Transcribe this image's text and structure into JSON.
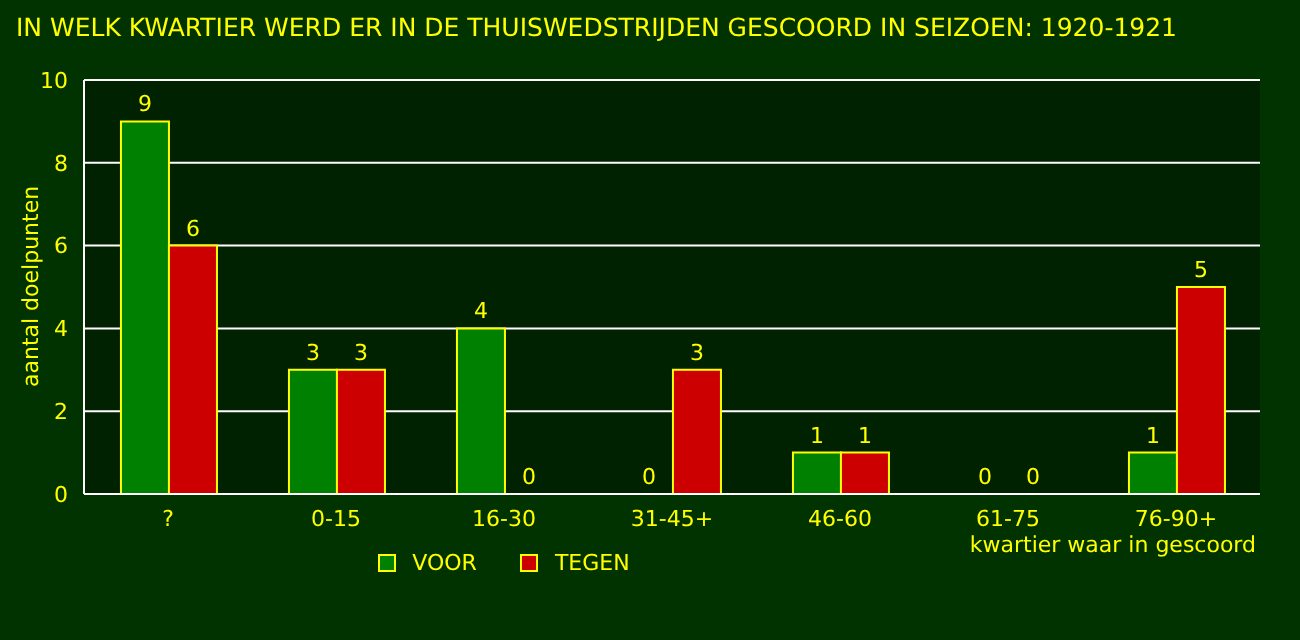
{
  "chart_data": {
    "type": "bar",
    "title": "IN WELK KWARTIER WERD ER IN DE THUISWEDSTRIJDEN GESCOORD IN SEIZOEN: 1920-1921",
    "xlabel": "kwartier waar in gescoord",
    "ylabel": "aantal doelpunten",
    "categories": [
      "?",
      "0-15",
      "16-30",
      "31-45+",
      "46-60",
      "61-75",
      "76-90+"
    ],
    "series": [
      {
        "name": "VOOR",
        "color": "#008000",
        "values": [
          9,
          3,
          4,
          0,
          1,
          0,
          1
        ]
      },
      {
        "name": "TEGEN",
        "color": "#cc0000",
        "values": [
          6,
          3,
          0,
          3,
          1,
          0,
          5
        ]
      }
    ],
    "ylim": [
      0,
      10
    ],
    "yticks": [
      0,
      2,
      4,
      6,
      8,
      10
    ],
    "grid": "y",
    "legend": "bottom",
    "data_labels": true
  }
}
